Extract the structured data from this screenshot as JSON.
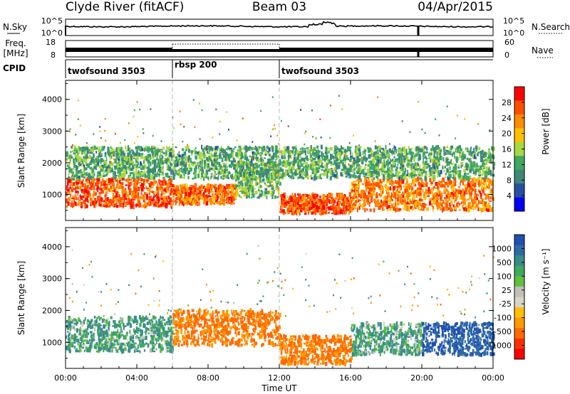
{
  "header": {
    "station": "Clyde River (fitACF)",
    "beam": "Beam 03",
    "date": "04/Apr/2015"
  },
  "nsky_panel": {
    "left_label": "N.Sky",
    "left_ticks": [
      "10^5",
      "10^0"
    ],
    "right_ticks": [
      "10^5",
      "10^0"
    ],
    "right_label": "N.Search"
  },
  "freq_panel": {
    "left_label_line1": "Freq.",
    "left_label_line2": "[MHz]",
    "left_ticks": [
      "18",
      "8"
    ],
    "right_ticks": [
      "60",
      "0"
    ],
    "right_label": "Nave"
  },
  "cpid": {
    "label": "CPID",
    "segments": [
      {
        "name": "twofsound 3503",
        "start_h": 0,
        "end_h": 6
      },
      {
        "name": "rbsp 200",
        "start_h": 6,
        "end_h": 12
      },
      {
        "name": "twofsound 3503",
        "start_h": 12,
        "end_h": 24
      }
    ]
  },
  "x_axis": {
    "title": "Time UT",
    "ticks": [
      "00:00",
      "04:00",
      "08:00",
      "12:00",
      "16:00",
      "20:00",
      "00:00"
    ]
  },
  "power_panel": {
    "ylabel": "Slant Range [km]",
    "yticks": [
      "1000",
      "2000",
      "3000",
      "4000"
    ],
    "colorbar_label": "Power [dB]",
    "colorbar_ticks": [
      "28",
      "24",
      "20",
      "16",
      "12",
      "8",
      "4"
    ],
    "colors": [
      "#ff0000",
      "#ff4d00",
      "#ff8c00",
      "#ffc000",
      "#a8d840",
      "#40a860",
      "#3e8878",
      "#2850a0",
      "#0000ff"
    ]
  },
  "velocity_panel": {
    "ylabel": "Slant Range [km]",
    "yticks": [
      "1000",
      "2000",
      "3000",
      "4000"
    ],
    "colorbar_label": "Velocity [m s⁻¹]",
    "colorbar_ticks": [
      "1000",
      "500",
      "100",
      "25",
      "-25",
      "-100",
      "-500",
      "-1000"
    ],
    "colors": [
      "#2050b0",
      "#2e6aa6",
      "#3a8c8a",
      "#40a860",
      "#60c040",
      "#c0c0b8",
      "#d8d4c8",
      "#ffc000",
      "#ff9a00",
      "#ff6a00",
      "#ff3000",
      "#ff0000"
    ]
  },
  "chart_data": [
    {
      "type": "heatmap",
      "title": "Power",
      "x": {
        "label": "Time UT",
        "range_hours": [
          0,
          24
        ]
      },
      "y": {
        "label": "Slant Range [km]",
        "range_km": [
          180,
          4600
        ]
      },
      "color_scale": {
        "label": "Power [dB]",
        "range": [
          0,
          32
        ],
        "ticks": [
          4,
          8,
          12,
          16,
          20,
          24,
          28
        ]
      },
      "bands": [
        {
          "start_h": 0,
          "end_h": 6,
          "range_km": [
            600,
            1500
          ],
          "power_db": 26
        },
        {
          "start_h": 6,
          "end_h": 9.5,
          "range_km": [
            700,
            1300
          ],
          "power_db": 25
        },
        {
          "start_h": 9.5,
          "end_h": 12,
          "range_km": [
            900,
            2000
          ],
          "power_db": 14
        },
        {
          "start_h": 12,
          "end_h": 16,
          "range_km": [
            400,
            1000
          ],
          "power_db": 26
        },
        {
          "start_h": 16,
          "end_h": 24,
          "range_km": [
            500,
            1500
          ],
          "power_db": 24
        },
        {
          "start_h": 0,
          "end_h": 24,
          "range_km": [
            1500,
            2500
          ],
          "power_db": 12
        }
      ]
    },
    {
      "type": "heatmap",
      "title": "Velocity",
      "x": {
        "label": "Time UT",
        "range_hours": [
          0,
          24
        ]
      },
      "y": {
        "label": "Slant Range [km]",
        "range_km": [
          180,
          4600
        ]
      },
      "color_scale": {
        "label": "Velocity [m s⁻¹]",
        "ticks": [
          1000,
          500,
          100,
          25,
          -25,
          -100,
          -500,
          -1000
        ]
      },
      "bands": [
        {
          "start_h": 0,
          "end_h": 6,
          "range_km": [
            700,
            1800
          ],
          "velocity_ms": 150
        },
        {
          "start_h": 6,
          "end_h": 12,
          "range_km": [
            900,
            2000
          ],
          "velocity_ms": -300
        },
        {
          "start_h": 12,
          "end_h": 16,
          "range_km": [
            300,
            1200
          ],
          "velocity_ms": -300
        },
        {
          "start_h": 16,
          "end_h": 20,
          "range_km": [
            600,
            1600
          ],
          "velocity_ms": 150
        },
        {
          "start_h": 20,
          "end_h": 24,
          "range_km": [
            600,
            1600
          ],
          "velocity_ms": 700
        }
      ]
    }
  ]
}
